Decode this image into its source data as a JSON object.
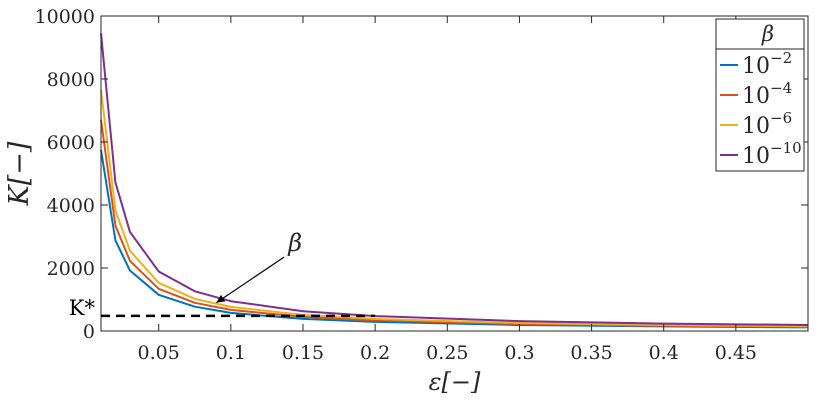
{
  "chart_data": {
    "type": "line",
    "xlabel": "ε[−]",
    "ylabel": "K[−]",
    "xlim": [
      0.01,
      0.5
    ],
    "ylim": [
      0,
      10000
    ],
    "x_ticks": [
      0.05,
      0.1,
      0.15,
      0.2,
      0.25,
      0.3,
      0.35,
      0.4,
      0.45
    ],
    "x_tick_labels": [
      "0.05",
      "0.1",
      "0.15",
      "0.2",
      "0.25",
      "0.3",
      "0.35",
      "0.4",
      "0.45"
    ],
    "y_ticks": [
      0,
      2000,
      4000,
      6000,
      8000,
      10000
    ],
    "y_tick_labels": [
      "0",
      "2000",
      "4000",
      "6000",
      "8000",
      "10000"
    ],
    "grid": false,
    "legend": {
      "title": "β",
      "location": "top-right"
    },
    "series": [
      {
        "name": "10^-2",
        "base": "10",
        "exp": "−2",
        "color": "#0072BD",
        "x": [
          0.01,
          0.02,
          0.03,
          0.05,
          0.075,
          0.1,
          0.15,
          0.2,
          0.3,
          0.4,
          0.5
        ],
        "y": [
          5750,
          2880,
          1920,
          1150,
          770,
          575,
          385,
          290,
          190,
          145,
          115
        ]
      },
      {
        "name": "10^-4",
        "base": "10",
        "exp": "−4",
        "color": "#D95319",
        "x": [
          0.01,
          0.02,
          0.03,
          0.05,
          0.075,
          0.1,
          0.15,
          0.2,
          0.3,
          0.4,
          0.5
        ],
        "y": [
          6700,
          3350,
          2230,
          1340,
          895,
          670,
          447,
          335,
          223,
          168,
          134
        ]
      },
      {
        "name": "10^-6",
        "base": "10",
        "exp": "−6",
        "color": "#EDB120",
        "x": [
          0.01,
          0.02,
          0.03,
          0.05,
          0.075,
          0.1,
          0.15,
          0.2,
          0.3,
          0.4,
          0.5
        ],
        "y": [
          7650,
          3830,
          2550,
          1530,
          1020,
          765,
          510,
          383,
          255,
          191,
          153
        ]
      },
      {
        "name": "10^-10",
        "base": "10",
        "exp": "−10",
        "color": "#7E2F8E",
        "x": [
          0.01,
          0.02,
          0.03,
          0.05,
          0.075,
          0.1,
          0.15,
          0.2,
          0.3,
          0.4,
          0.5
        ],
        "y": [
          9450,
          4720,
          3150,
          1890,
          1260,
          945,
          630,
          473,
          315,
          236,
          189
        ]
      }
    ],
    "annotations": {
      "reference_line": {
        "label": "K*",
        "value": 480,
        "x_range": [
          0.01,
          0.2
        ],
        "style": "dashed",
        "color": "#000000"
      },
      "arrow": {
        "label": "β",
        "from": [
          0.137,
          2350
        ],
        "to": [
          0.09,
          900
        ]
      }
    }
  }
}
